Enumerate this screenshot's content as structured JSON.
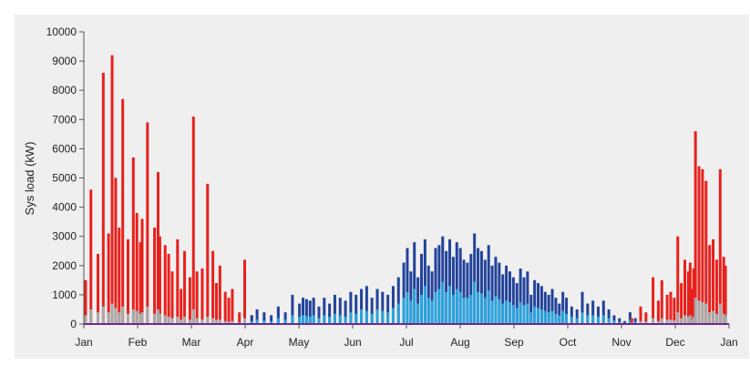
{
  "chart_data": {
    "type": "bar",
    "title": "",
    "xlabel": "",
    "ylabel": "Sys load (kW)",
    "ylim": [
      0,
      10000
    ],
    "yticks": [
      0,
      1000,
      2000,
      3000,
      4000,
      5000,
      6000,
      7000,
      8000,
      9000,
      10000
    ],
    "xticks": [
      "Jan",
      "Feb",
      "Mar",
      "Apr",
      "May",
      "Jun",
      "Jul",
      "Aug",
      "Sep",
      "Oct",
      "Nov",
      "Dec",
      "Jan"
    ],
    "x_range_days": [
      0,
      365
    ],
    "grid": false,
    "legend": "none",
    "colors": {
      "background": "#efefef",
      "heating": "#e8211d",
      "heating_aux": "#a9a9a9",
      "cooling": "#22439a",
      "cooling_aux": "#2aa3dd",
      "baseline": "#6a2a8f"
    },
    "series": [
      {
        "key": "heating",
        "x": [
          1,
          4,
          8,
          11,
          14,
          16,
          18,
          20,
          22,
          25,
          28,
          30,
          32,
          33,
          36,
          40,
          42,
          43,
          46,
          48,
          50,
          53,
          55,
          57,
          60,
          62,
          64,
          67,
          70,
          73,
          75,
          77,
          80,
          82,
          84,
          88,
          91,
          95
        ],
        "values": [
          1500,
          4600,
          2400,
          8600,
          3100,
          9200,
          5000,
          3300,
          7700,
          2900,
          5700,
          3800,
          2800,
          3600,
          6900,
          3300,
          5200,
          3000,
          2700,
          2400,
          1800,
          2900,
          1200,
          2500,
          1600,
          7100,
          1800,
          1900,
          4800,
          2500,
          1400,
          2000,
          1100,
          900,
          1200,
          400,
          2200,
          300
        ]
      },
      {
        "key": "heating_aux",
        "x": [
          1,
          4,
          8,
          11,
          14,
          16,
          18,
          20,
          22,
          25,
          28,
          30,
          32,
          33,
          36,
          40,
          42,
          43,
          46,
          48,
          50,
          53,
          55,
          57,
          60,
          62,
          64,
          67,
          70,
          73,
          75,
          77,
          80,
          82,
          84,
          88,
          91,
          95
        ],
        "values": [
          300,
          500,
          400,
          600,
          400,
          700,
          550,
          400,
          600,
          350,
          500,
          450,
          350,
          400,
          600,
          350,
          500,
          350,
          300,
          250,
          200,
          250,
          150,
          250,
          150,
          500,
          200,
          150,
          250,
          200,
          150,
          150,
          100,
          80,
          100,
          50,
          200,
          30
        ]
      },
      {
        "key": "cooling",
        "x": [
          95,
          98,
          102,
          106,
          110,
          114,
          118,
          122,
          124,
          126,
          128,
          130,
          133,
          136,
          139,
          142,
          145,
          148,
          151,
          154,
          157,
          160,
          163,
          166,
          169,
          172,
          175,
          178,
          181,
          183,
          185,
          187,
          189,
          191,
          193,
          195,
          197,
          199,
          201,
          203,
          205,
          207,
          209,
          211,
          213,
          215,
          217,
          219,
          221,
          223,
          225,
          227,
          229,
          231,
          233,
          235,
          237,
          239,
          241,
          243,
          245,
          247,
          249,
          251,
          253,
          255,
          257,
          259,
          261,
          263,
          265,
          267,
          269,
          271,
          273,
          276,
          279,
          282,
          285,
          288,
          291,
          294,
          297,
          300,
          303,
          306,
          309,
          312
        ],
        "values": [
          300,
          500,
          400,
          300,
          600,
          400,
          1000,
          700,
          900,
          850,
          800,
          900,
          600,
          900,
          700,
          1000,
          900,
          800,
          1100,
          1000,
          1200,
          1300,
          900,
          1200,
          1100,
          1000,
          1300,
          1600,
          2100,
          2600,
          1800,
          2800,
          1600,
          2400,
          2900,
          2000,
          1800,
          2600,
          2700,
          3000,
          2500,
          2900,
          2300,
          2800,
          2600,
          2200,
          2100,
          2400,
          3100,
          2600,
          2500,
          2200,
          2700,
          2000,
          2300,
          2100,
          1700,
          2000,
          1800,
          1600,
          1400,
          1900,
          1600,
          1800,
          1000,
          1500,
          1400,
          1300,
          1100,
          1000,
          1200,
          900,
          700,
          1100,
          900,
          600,
          500,
          1100,
          700,
          800,
          600,
          800,
          500,
          300,
          200,
          100,
          400,
          200
        ]
      },
      {
        "key": "cooling_aux",
        "x": [
          95,
          98,
          102,
          106,
          110,
          114,
          118,
          122,
          124,
          126,
          128,
          130,
          133,
          136,
          139,
          142,
          145,
          148,
          151,
          154,
          157,
          160,
          163,
          166,
          169,
          172,
          175,
          178,
          181,
          183,
          185,
          187,
          189,
          191,
          193,
          195,
          197,
          199,
          201,
          203,
          205,
          207,
          209,
          211,
          213,
          215,
          217,
          219,
          221,
          223,
          225,
          227,
          229,
          231,
          233,
          235,
          237,
          239,
          241,
          243,
          245,
          247,
          249,
          251,
          253,
          255,
          257,
          259,
          261,
          263,
          265,
          267,
          269,
          271,
          273,
          276,
          279,
          282,
          285,
          288,
          291,
          294,
          297,
          300,
          303,
          306,
          309,
          312
        ],
        "values": [
          100,
          150,
          120,
          100,
          200,
          150,
          300,
          250,
          300,
          280,
          250,
          300,
          200,
          300,
          250,
          350,
          300,
          250,
          400,
          350,
          500,
          450,
          350,
          500,
          450,
          400,
          550,
          700,
          900,
          1100,
          800,
          1200,
          700,
          1000,
          1300,
          900,
          800,
          1100,
          1200,
          1450,
          1100,
          1300,
          1000,
          1200,
          1100,
          900,
          900,
          1000,
          1450,
          1100,
          1050,
          900,
          1150,
          800,
          950,
          850,
          700,
          800,
          750,
          650,
          550,
          750,
          650,
          700,
          400,
          600,
          550,
          500,
          450,
          400,
          450,
          350,
          300,
          450,
          350,
          250,
          200,
          400,
          300,
          300,
          250,
          300,
          200,
          120,
          80,
          40,
          150,
          80
        ]
      },
      {
        "key": "heating",
        "x": [
          310,
          315,
          318,
          322,
          325,
          327,
          330,
          332,
          334,
          336,
          338,
          340,
          342,
          343,
          344,
          345,
          346,
          348,
          350,
          352,
          354,
          356,
          358,
          360,
          362,
          363
        ],
        "values": [
          200,
          600,
          400,
          1600,
          800,
          1500,
          1000,
          1100,
          900,
          3000,
          1400,
          2200,
          1800,
          2100,
          1200,
          1900,
          6600,
          5400,
          5300,
          4900,
          2700,
          2900,
          2200,
          5300,
          2300,
          2000
        ]
      },
      {
        "key": "heating_aux",
        "x": [
          310,
          315,
          318,
          322,
          325,
          327,
          330,
          332,
          334,
          336,
          338,
          340,
          342,
          343,
          344,
          345,
          346,
          348,
          350,
          352,
          354,
          356,
          358,
          360,
          362,
          363
        ],
        "values": [
          50,
          100,
          80,
          200,
          100,
          200,
          150,
          150,
          120,
          400,
          200,
          300,
          250,
          300,
          150,
          250,
          900,
          800,
          750,
          700,
          400,
          450,
          350,
          700,
          350,
          300
        ]
      }
    ]
  }
}
